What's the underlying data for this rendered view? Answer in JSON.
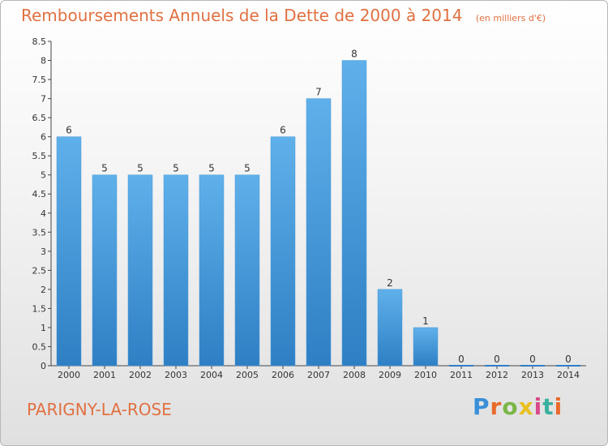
{
  "chart_data": {
    "type": "bar",
    "title": "Remboursements Annuels de la Dette de 2000 à 2014",
    "subtitle": "(en milliers d'€)",
    "categories": [
      "2000",
      "2001",
      "2002",
      "2003",
      "2004",
      "2005",
      "2006",
      "2007",
      "2008",
      "2009",
      "2010",
      "2011",
      "2012",
      "2013",
      "2014"
    ],
    "values": [
      6,
      5,
      5,
      5,
      5,
      5,
      6,
      7,
      8,
      2,
      1,
      0,
      0,
      0,
      0
    ],
    "y_ticks": [
      "0",
      "0.5",
      "1",
      "1.5",
      "2",
      "2.5",
      "3",
      "3.5",
      "4",
      "4.5",
      "5",
      "5.5",
      "6",
      "6.5",
      "7",
      "7.5",
      "8",
      "8.5"
    ],
    "ylim": [
      0,
      8.5
    ],
    "grid": false,
    "bar_color": "#5aaae6"
  },
  "footer": {
    "place": "PARIGNY-LA-ROSE",
    "logo_text": "Proxiti",
    "logo_colors": [
      "#3a8fd8",
      "#e86a2a",
      "#7ab648",
      "#e8c020",
      "#d84a8a",
      "#3ab0a0",
      "#e86a2a"
    ]
  },
  "colors": {
    "title": "#e07040",
    "axis": "#333333"
  }
}
